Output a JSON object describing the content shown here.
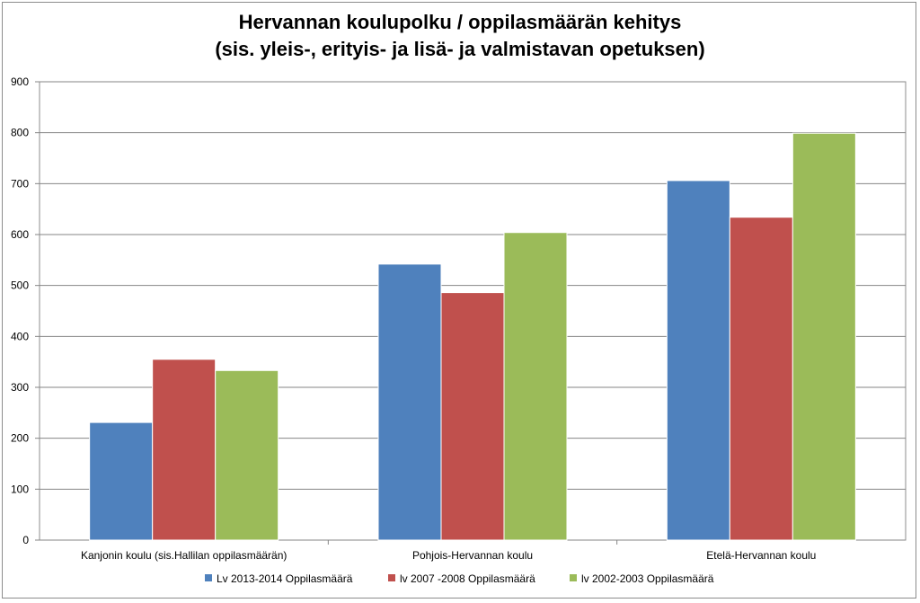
{
  "chart_data": {
    "type": "bar",
    "title_line1": "Hervannan koulupolku / oppilasmäärän kehitys",
    "title_line2": "(sis. yleis-, erityis- ja lisä- ja valmistavan opetuksen)",
    "categories": [
      "Kanjonin koulu (sis.Hallilan oppilasmäärän)",
      "Pohjois-Hervannan koulu",
      "Etelä-Hervannan koulu"
    ],
    "series": [
      {
        "name": "Lv 2013-2014  Oppilasmäärä",
        "color": "#4F81BD",
        "values": [
          231,
          542,
          706
        ]
      },
      {
        "name": "lv 2007 -2008 Oppilasmäärä",
        "color": "#C0504D",
        "values": [
          355,
          486,
          634
        ]
      },
      {
        "name": "lv 2002-2003 Oppilasmäärä",
        "color": "#9BBB59",
        "values": [
          333,
          604,
          799
        ]
      }
    ],
    "yticks": [
      0,
      100,
      200,
      300,
      400,
      500,
      600,
      700,
      800,
      900
    ],
    "ylim": [
      0,
      900
    ],
    "grid": true,
    "legend": "bottom"
  }
}
